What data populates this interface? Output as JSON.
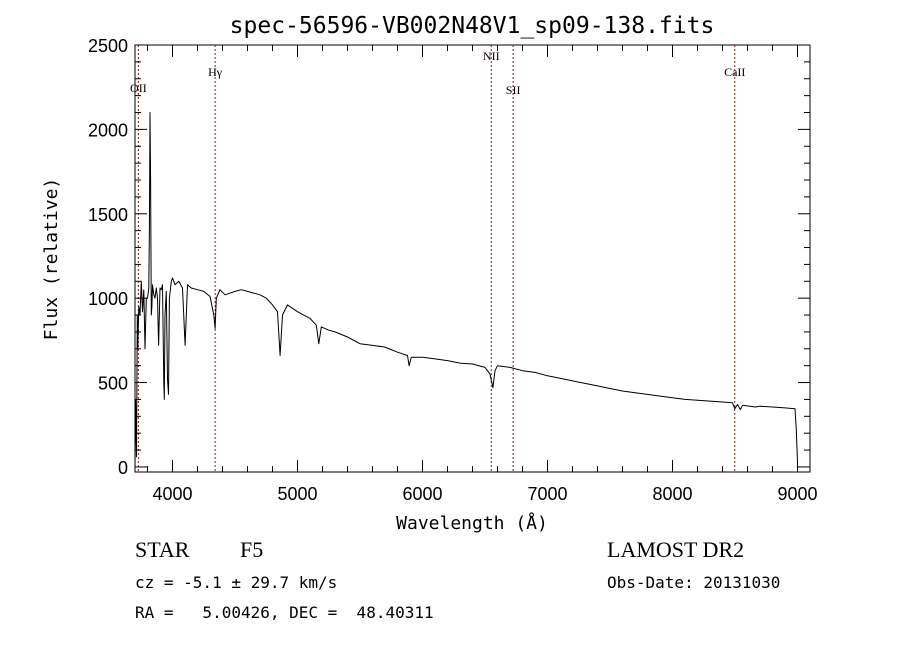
{
  "chart_data": {
    "type": "line",
    "title": "spec-56596-VB002N48V1_sp09-138.fits",
    "xlabel": "Wavelength (Å)",
    "ylabel": "Flux (relative)",
    "xlim": [
      3700,
      9100
    ],
    "ylim": [
      -30,
      2500
    ],
    "xticks": [
      4000,
      5000,
      6000,
      7000,
      8000,
      9000
    ],
    "yticks": [
      0,
      500,
      1000,
      1500,
      2000,
      2500
    ],
    "grid": false,
    "line_color": "#000000",
    "marker_color": "#8b1a1a",
    "lines": [
      {
        "label": "OII",
        "x": 3727
      },
      {
        "label": "Hγ",
        "x": 4341
      },
      {
        "label": "NII",
        "x": 6550
      },
      {
        "label": "SII",
        "x": 6725
      },
      {
        "label": "CaII",
        "x": 8498
      }
    ],
    "series": [
      {
        "x": [
          3700,
          3705,
          3712,
          3718,
          3722,
          3730,
          3740,
          3750,
          3760,
          3770,
          3780,
          3790,
          3800,
          3810,
          3815,
          3820,
          3825,
          3830,
          3835,
          3840,
          3850,
          3860,
          3870,
          3880,
          3889,
          3900,
          3910,
          3920,
          3930,
          3934,
          3940,
          3950,
          3960,
          3968,
          3975,
          3990,
          4000,
          4020,
          4050,
          4080,
          4101,
          4120,
          4150,
          4200,
          4250,
          4300,
          4330,
          4341,
          4350,
          4380,
          4420,
          4500,
          4550,
          4600,
          4650,
          4700,
          4750,
          4800,
          4840,
          4861,
          4880,
          4920,
          5000,
          5100,
          5150,
          5170,
          5190,
          5250,
          5300,
          5400,
          5500,
          5600,
          5700,
          5800,
          5880,
          5893,
          5910,
          6000,
          6100,
          6200,
          6300,
          6400,
          6500,
          6540,
          6563,
          6580,
          6600,
          6700,
          6800,
          6900,
          7000,
          7100,
          7200,
          7300,
          7400,
          7500,
          7600,
          7700,
          7800,
          7900,
          8000,
          8100,
          8200,
          8300,
          8400,
          8480,
          8498,
          8520,
          8542,
          8560,
          8662,
          8700,
          8800,
          8900,
          8980,
          8990,
          9000
        ],
        "y": [
          0,
          400,
          60,
          900,
          700,
          950,
          900,
          1100,
          920,
          1050,
          700,
          1000,
          1000,
          1060,
          1400,
          2100,
          1700,
          900,
          950,
          1080,
          1020,
          1000,
          1060,
          1000,
          720,
          1060,
          1050,
          1080,
          500,
          400,
          900,
          1040,
          520,
          430,
          1000,
          1100,
          1120,
          1080,
          1100,
          1060,
          720,
          1080,
          1060,
          1050,
          1040,
          1010,
          900,
          820,
          1000,
          1050,
          1020,
          1040,
          1050,
          1040,
          1030,
          1020,
          1000,
          960,
          920,
          660,
          900,
          960,
          920,
          880,
          840,
          730,
          830,
          810,
          800,
          770,
          730,
          720,
          710,
          680,
          660,
          600,
          650,
          650,
          640,
          630,
          615,
          610,
          590,
          550,
          470,
          570,
          600,
          590,
          570,
          560,
          540,
          525,
          510,
          495,
          480,
          465,
          450,
          440,
          430,
          420,
          410,
          400,
          395,
          390,
          385,
          380,
          345,
          370,
          340,
          365,
          355,
          360,
          355,
          350,
          345,
          220,
          30
        ]
      }
    ]
  },
  "info": {
    "object_class": "STAR",
    "subclass": "F5",
    "survey": "LAMOST DR2",
    "redshift_text": "cz = -5.1 ± 29.7 km/s",
    "obs_date_text": "Obs-Date: 20131030",
    "coords_text": "RA =   5.00426, DEC =  48.40311"
  }
}
